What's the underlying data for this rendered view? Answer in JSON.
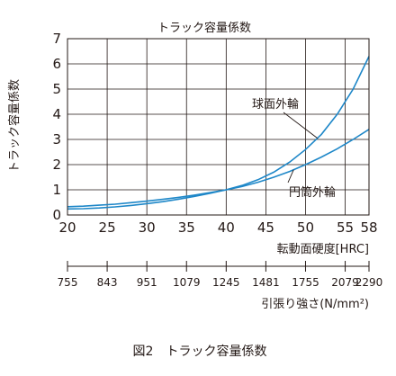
{
  "chart_data": {
    "type": "line",
    "title": "トラック容量係数",
    "ylabel": "トラック容量係数",
    "xlabel": "転動面硬度[HRC]",
    "secondary_xlabel": "引張り強さ(N/mm²)",
    "caption": "図2　トラック容量係数",
    "xlim": [
      20,
      58
    ],
    "ylim": [
      0,
      7
    ],
    "x_ticks": [
      "20",
      "25",
      "30",
      "35",
      "40",
      "45",
      "50",
      "55",
      "58"
    ],
    "y_ticks": [
      "0",
      "1",
      "2",
      "3",
      "4",
      "5",
      "6",
      "7"
    ],
    "secondary_x_ticks": [
      {
        "hrc": 20,
        "label": "755"
      },
      {
        "hrc": 25,
        "label": "843"
      },
      {
        "hrc": 30,
        "label": "951"
      },
      {
        "hrc": 35,
        "label": "1079"
      },
      {
        "hrc": 40,
        "label": "1245"
      },
      {
        "hrc": 45,
        "label": "1481"
      },
      {
        "hrc": 50,
        "label": "1755"
      },
      {
        "hrc": 55,
        "label": "2079"
      },
      {
        "hrc": 58,
        "label": "2290"
      }
    ],
    "grid": true,
    "series": [
      {
        "name": "球面外輪",
        "x": [
          20,
          22,
          24,
          26,
          28,
          30,
          32,
          34,
          36,
          38,
          40,
          42,
          44,
          46,
          48,
          50,
          52,
          54,
          56,
          58
        ],
        "y": [
          0.24,
          0.25,
          0.28,
          0.32,
          0.38,
          0.45,
          0.53,
          0.63,
          0.74,
          0.86,
          1.0,
          1.17,
          1.4,
          1.7,
          2.1,
          2.6,
          3.2,
          4.0,
          5.0,
          6.3
        ]
      },
      {
        "name": "円筒外輪",
        "x": [
          20,
          22,
          24,
          26,
          28,
          30,
          32,
          34,
          36,
          38,
          40,
          42,
          44,
          46,
          48,
          50,
          52,
          54,
          56,
          58
        ],
        "y": [
          0.33,
          0.35,
          0.39,
          0.43,
          0.49,
          0.55,
          0.62,
          0.7,
          0.79,
          0.89,
          1.0,
          1.13,
          1.3,
          1.5,
          1.73,
          2.0,
          2.3,
          2.63,
          3.0,
          3.4
        ]
      }
    ],
    "annotations": [
      {
        "text": "球面外輪",
        "series": 0,
        "at_x": 51.5
      },
      {
        "text": "円筒外輪",
        "series": 1,
        "at_x": 48.5
      }
    ],
    "line_color": "#1e87c8"
  }
}
